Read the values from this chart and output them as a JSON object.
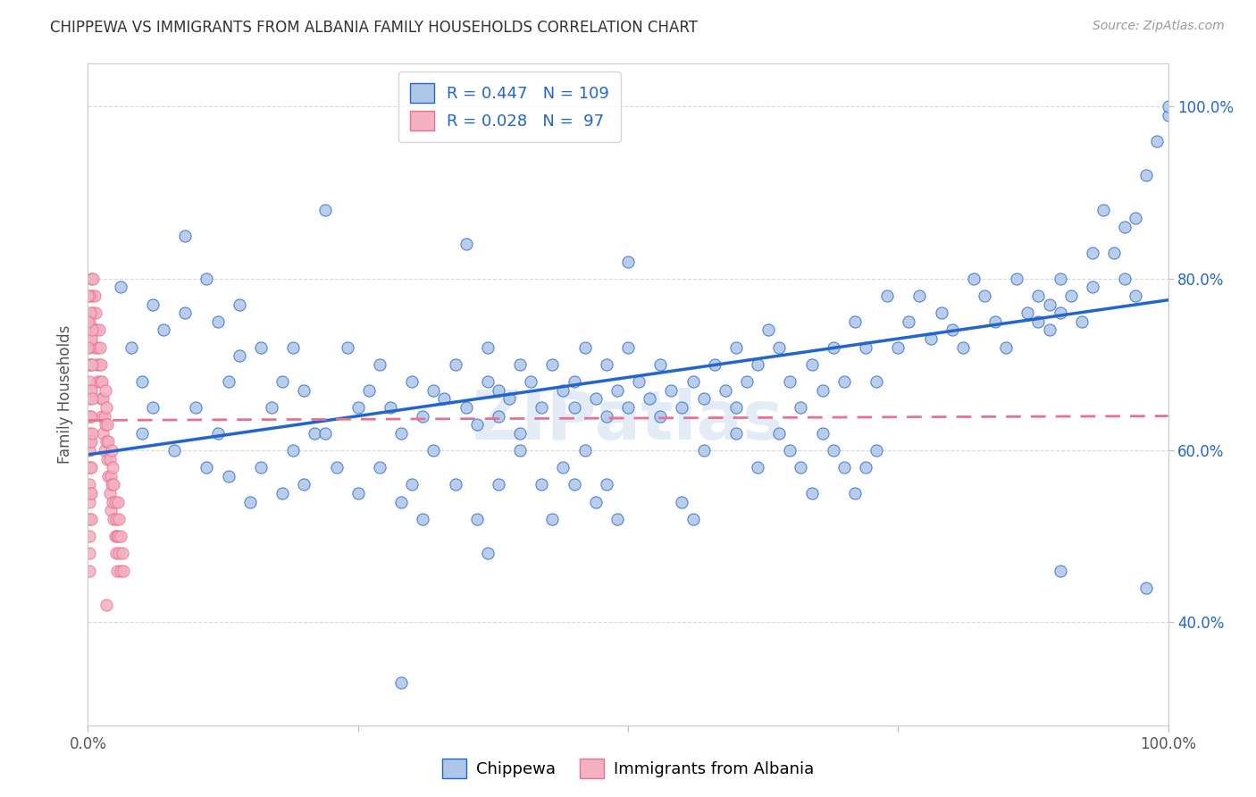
{
  "title": "CHIPPEWA VS IMMIGRANTS FROM ALBANIA FAMILY HOUSEHOLDS CORRELATION CHART",
  "source": "Source: ZipAtlas.com",
  "ylabel": "Family Households",
  "watermark": "ZIPatlas",
  "chippewa_color": "#aec6e8",
  "albania_color": "#f4afc0",
  "line_blue": "#2266cc",
  "line_pink": "#e87090",
  "chippewa_scatter": [
    [
      0.03,
      0.79
    ],
    [
      0.06,
      0.77
    ],
    [
      0.07,
      0.74
    ],
    [
      0.09,
      0.76
    ],
    [
      0.11,
      0.8
    ],
    [
      0.12,
      0.75
    ],
    [
      0.13,
      0.68
    ],
    [
      0.14,
      0.71
    ],
    [
      0.16,
      0.72
    ],
    [
      0.17,
      0.65
    ],
    [
      0.18,
      0.68
    ],
    [
      0.19,
      0.72
    ],
    [
      0.2,
      0.67
    ],
    [
      0.21,
      0.62
    ],
    [
      0.22,
      0.88
    ],
    [
      0.24,
      0.72
    ],
    [
      0.25,
      0.65
    ],
    [
      0.26,
      0.67
    ],
    [
      0.27,
      0.7
    ],
    [
      0.28,
      0.65
    ],
    [
      0.29,
      0.62
    ],
    [
      0.3,
      0.68
    ],
    [
      0.31,
      0.64
    ],
    [
      0.32,
      0.67
    ],
    [
      0.33,
      0.66
    ],
    [
      0.34,
      0.7
    ],
    [
      0.35,
      0.65
    ],
    [
      0.36,
      0.63
    ],
    [
      0.37,
      0.68
    ],
    [
      0.37,
      0.72
    ],
    [
      0.38,
      0.67
    ],
    [
      0.38,
      0.64
    ],
    [
      0.39,
      0.66
    ],
    [
      0.4,
      0.62
    ],
    [
      0.4,
      0.7
    ],
    [
      0.41,
      0.68
    ],
    [
      0.42,
      0.65
    ],
    [
      0.43,
      0.7
    ],
    [
      0.44,
      0.67
    ],
    [
      0.45,
      0.65
    ],
    [
      0.45,
      0.68
    ],
    [
      0.46,
      0.72
    ],
    [
      0.47,
      0.66
    ],
    [
      0.48,
      0.64
    ],
    [
      0.48,
      0.7
    ],
    [
      0.49,
      0.67
    ],
    [
      0.5,
      0.65
    ],
    [
      0.5,
      0.72
    ],
    [
      0.5,
      0.82
    ],
    [
      0.51,
      0.68
    ],
    [
      0.52,
      0.66
    ],
    [
      0.53,
      0.7
    ],
    [
      0.53,
      0.64
    ],
    [
      0.54,
      0.67
    ],
    [
      0.55,
      0.65
    ],
    [
      0.56,
      0.68
    ],
    [
      0.57,
      0.66
    ],
    [
      0.58,
      0.7
    ],
    [
      0.59,
      0.67
    ],
    [
      0.6,
      0.65
    ],
    [
      0.6,
      0.72
    ],
    [
      0.61,
      0.68
    ],
    [
      0.62,
      0.7
    ],
    [
      0.63,
      0.74
    ],
    [
      0.64,
      0.72
    ],
    [
      0.65,
      0.68
    ],
    [
      0.66,
      0.65
    ],
    [
      0.67,
      0.7
    ],
    [
      0.68,
      0.67
    ],
    [
      0.69,
      0.72
    ],
    [
      0.7,
      0.68
    ],
    [
      0.71,
      0.75
    ],
    [
      0.72,
      0.72
    ],
    [
      0.73,
      0.68
    ],
    [
      0.74,
      0.78
    ],
    [
      0.75,
      0.72
    ],
    [
      0.76,
      0.75
    ],
    [
      0.77,
      0.78
    ],
    [
      0.78,
      0.73
    ],
    [
      0.79,
      0.76
    ],
    [
      0.8,
      0.74
    ],
    [
      0.81,
      0.72
    ],
    [
      0.82,
      0.8
    ],
    [
      0.83,
      0.78
    ],
    [
      0.84,
      0.75
    ],
    [
      0.85,
      0.72
    ],
    [
      0.86,
      0.8
    ],
    [
      0.87,
      0.76
    ],
    [
      0.88,
      0.78
    ],
    [
      0.88,
      0.75
    ],
    [
      0.89,
      0.74
    ],
    [
      0.89,
      0.77
    ],
    [
      0.9,
      0.8
    ],
    [
      0.9,
      0.76
    ],
    [
      0.91,
      0.78
    ],
    [
      0.92,
      0.75
    ],
    [
      0.93,
      0.83
    ],
    [
      0.93,
      0.79
    ],
    [
      0.94,
      0.88
    ],
    [
      0.95,
      0.83
    ],
    [
      0.96,
      0.86
    ],
    [
      0.96,
      0.8
    ],
    [
      0.97,
      0.87
    ],
    [
      0.97,
      0.78
    ],
    [
      0.98,
      0.92
    ],
    [
      0.99,
      0.96
    ],
    [
      1.0,
      0.99
    ],
    [
      1.0,
      1.0
    ],
    [
      0.09,
      0.85
    ],
    [
      0.14,
      0.77
    ],
    [
      0.35,
      0.84
    ],
    [
      0.04,
      0.72
    ],
    [
      0.05,
      0.68
    ],
    [
      0.05,
      0.62
    ],
    [
      0.06,
      0.65
    ],
    [
      0.08,
      0.6
    ],
    [
      0.1,
      0.65
    ],
    [
      0.11,
      0.58
    ],
    [
      0.12,
      0.62
    ],
    [
      0.13,
      0.57
    ],
    [
      0.15,
      0.54
    ],
    [
      0.16,
      0.58
    ],
    [
      0.18,
      0.55
    ],
    [
      0.19,
      0.6
    ],
    [
      0.2,
      0.56
    ],
    [
      0.22,
      0.62
    ],
    [
      0.23,
      0.58
    ],
    [
      0.25,
      0.55
    ],
    [
      0.27,
      0.58
    ],
    [
      0.29,
      0.54
    ],
    [
      0.3,
      0.56
    ],
    [
      0.31,
      0.52
    ],
    [
      0.32,
      0.6
    ],
    [
      0.34,
      0.56
    ],
    [
      0.36,
      0.52
    ],
    [
      0.37,
      0.48
    ],
    [
      0.38,
      0.56
    ],
    [
      0.4,
      0.6
    ],
    [
      0.42,
      0.56
    ],
    [
      0.43,
      0.52
    ],
    [
      0.44,
      0.58
    ],
    [
      0.45,
      0.56
    ],
    [
      0.46,
      0.6
    ],
    [
      0.47,
      0.54
    ],
    [
      0.48,
      0.56
    ],
    [
      0.49,
      0.52
    ],
    [
      0.55,
      0.54
    ],
    [
      0.56,
      0.52
    ],
    [
      0.57,
      0.6
    ],
    [
      0.6,
      0.62
    ],
    [
      0.62,
      0.58
    ],
    [
      0.64,
      0.62
    ],
    [
      0.65,
      0.6
    ],
    [
      0.66,
      0.58
    ],
    [
      0.67,
      0.55
    ],
    [
      0.68,
      0.62
    ],
    [
      0.69,
      0.6
    ],
    [
      0.7,
      0.58
    ],
    [
      0.71,
      0.55
    ],
    [
      0.72,
      0.58
    ],
    [
      0.73,
      0.6
    ],
    [
      0.9,
      0.46
    ],
    [
      0.98,
      0.44
    ],
    [
      0.29,
      0.33
    ]
  ],
  "albania_scatter": [
    [
      0.003,
      0.8
    ],
    [
      0.004,
      0.78
    ],
    [
      0.005,
      0.76
    ],
    [
      0.005,
      0.8
    ],
    [
      0.006,
      0.78
    ],
    [
      0.006,
      0.74
    ],
    [
      0.007,
      0.76
    ],
    [
      0.007,
      0.72
    ],
    [
      0.008,
      0.74
    ],
    [
      0.008,
      0.7
    ],
    [
      0.009,
      0.72
    ],
    [
      0.009,
      0.68
    ],
    [
      0.01,
      0.74
    ],
    [
      0.01,
      0.7
    ],
    [
      0.011,
      0.72
    ],
    [
      0.011,
      0.68
    ],
    [
      0.012,
      0.7
    ],
    [
      0.012,
      0.66
    ],
    [
      0.013,
      0.68
    ],
    [
      0.013,
      0.64
    ],
    [
      0.014,
      0.66
    ],
    [
      0.014,
      0.62
    ],
    [
      0.015,
      0.64
    ],
    [
      0.015,
      0.6
    ],
    [
      0.016,
      0.67
    ],
    [
      0.016,
      0.63
    ],
    [
      0.017,
      0.65
    ],
    [
      0.017,
      0.61
    ],
    [
      0.018,
      0.63
    ],
    [
      0.018,
      0.59
    ],
    [
      0.019,
      0.61
    ],
    [
      0.019,
      0.57
    ],
    [
      0.02,
      0.59
    ],
    [
      0.02,
      0.55
    ],
    [
      0.021,
      0.57
    ],
    [
      0.021,
      0.53
    ],
    [
      0.022,
      0.6
    ],
    [
      0.022,
      0.56
    ],
    [
      0.023,
      0.58
    ],
    [
      0.023,
      0.54
    ],
    [
      0.024,
      0.56
    ],
    [
      0.024,
      0.52
    ],
    [
      0.025,
      0.54
    ],
    [
      0.025,
      0.5
    ],
    [
      0.026,
      0.52
    ],
    [
      0.026,
      0.48
    ],
    [
      0.027,
      0.5
    ],
    [
      0.027,
      0.46
    ],
    [
      0.028,
      0.54
    ],
    [
      0.028,
      0.5
    ],
    [
      0.029,
      0.52
    ],
    [
      0.029,
      0.48
    ],
    [
      0.03,
      0.5
    ],
    [
      0.03,
      0.46
    ],
    [
      0.032,
      0.48
    ],
    [
      0.033,
      0.46
    ],
    [
      0.001,
      0.78
    ],
    [
      0.001,
      0.75
    ],
    [
      0.001,
      0.72
    ],
    [
      0.001,
      0.7
    ],
    [
      0.001,
      0.68
    ],
    [
      0.001,
      0.66
    ],
    [
      0.001,
      0.64
    ],
    [
      0.001,
      0.62
    ],
    [
      0.001,
      0.6
    ],
    [
      0.001,
      0.58
    ],
    [
      0.001,
      0.56
    ],
    [
      0.001,
      0.54
    ],
    [
      0.001,
      0.52
    ],
    [
      0.001,
      0.5
    ],
    [
      0.001,
      0.48
    ],
    [
      0.001,
      0.46
    ],
    [
      0.002,
      0.76
    ],
    [
      0.002,
      0.73
    ],
    [
      0.002,
      0.7
    ],
    [
      0.002,
      0.67
    ],
    [
      0.002,
      0.64
    ],
    [
      0.002,
      0.61
    ],
    [
      0.002,
      0.58
    ],
    [
      0.002,
      0.55
    ],
    [
      0.003,
      0.73
    ],
    [
      0.003,
      0.7
    ],
    [
      0.003,
      0.67
    ],
    [
      0.003,
      0.64
    ],
    [
      0.003,
      0.61
    ],
    [
      0.003,
      0.58
    ],
    [
      0.003,
      0.55
    ],
    [
      0.003,
      0.52
    ],
    [
      0.004,
      0.74
    ],
    [
      0.004,
      0.7
    ],
    [
      0.004,
      0.66
    ],
    [
      0.004,
      0.62
    ],
    [
      0.0,
      0.78
    ],
    [
      0.0,
      0.75
    ],
    [
      0.0,
      0.72
    ],
    [
      0.017,
      0.42
    ]
  ],
  "blue_line": {
    "x0": 0.0,
    "x1": 1.0,
    "y0": 0.595,
    "y1": 0.775
  },
  "pink_line": {
    "x0": 0.0,
    "x1": 1.0,
    "y0": 0.635,
    "y1": 0.64
  },
  "xlim": [
    0.0,
    1.0
  ],
  "ylim": [
    0.28,
    1.05
  ],
  "yticks": [
    0.4,
    0.6,
    0.8,
    1.0
  ],
  "ytick_labels": [
    "40.0%",
    "60.0%",
    "80.0%",
    "100.0%"
  ],
  "xticks": [
    0.0,
    0.25,
    0.5,
    0.75,
    1.0
  ],
  "xtick_labels": [
    "0.0%",
    "",
    "",
    "",
    "100.0%"
  ],
  "background_color": "#ffffff",
  "grid_color": "#d8d8d8",
  "title_fontsize": 12,
  "axis_label_fontsize": 12,
  "tick_fontsize": 12
}
